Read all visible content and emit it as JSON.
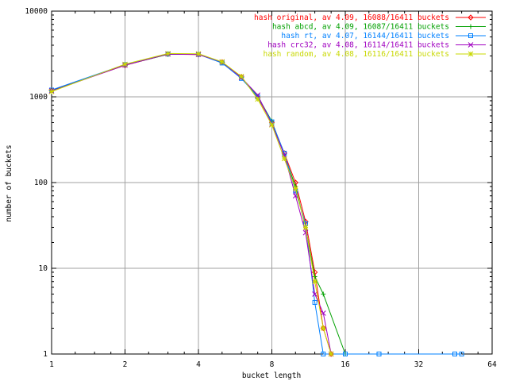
{
  "chart_data": {
    "type": "line",
    "xlabel": "bucket length",
    "ylabel": "number of buckets",
    "xscale": "log2",
    "yscale": "log10",
    "xlim": [
      1,
      64
    ],
    "ylim": [
      1,
      10000
    ],
    "xticks": [
      "1",
      "2",
      "4",
      "8",
      "16",
      "32",
      "64"
    ],
    "yticks": [
      "1",
      "10",
      "100",
      "1000",
      "10000"
    ],
    "grid": true,
    "legend_position": "top-right",
    "series": [
      {
        "name": "hash original, av 4.09, 16088/16411 buckets",
        "color": "#ff0000",
        "marker": "diamond",
        "x": [
          1,
          2,
          3,
          4,
          5,
          6,
          7,
          8,
          9,
          10,
          11,
          12,
          13,
          14
        ],
        "y": [
          1190,
          2330,
          3150,
          3110,
          2540,
          1710,
          980,
          500,
          220,
          100,
          35,
          9,
          2,
          1
        ]
      },
      {
        "name": "hash abcd, av 4.09, 16087/16411 buckets",
        "color": "#00a000",
        "marker": "plus",
        "x": [
          1,
          2,
          3,
          4,
          5,
          6,
          7,
          8,
          9,
          10,
          11,
          12,
          13,
          16
        ],
        "y": [
          1180,
          2350,
          3130,
          3140,
          2500,
          1690,
          1010,
          520,
          210,
          90,
          30,
          8,
          5,
          1
        ]
      },
      {
        "name": "hash rt, av 4.07, 16144/16411 buckets",
        "color": "#0080ff",
        "marker": "square",
        "x": [
          1,
          2,
          3,
          4,
          5,
          6,
          7,
          8,
          9,
          10,
          11,
          12,
          13,
          16,
          22,
          45,
          48
        ],
        "y": [
          1200,
          2380,
          3160,
          3130,
          2480,
          1640,
          1000,
          510,
          220,
          80,
          33,
          4,
          1,
          1,
          1,
          1,
          1
        ]
      },
      {
        "name": "hash crc32, av 4.08, 16114/16411 buckets",
        "color": "#a000c0",
        "marker": "cross",
        "x": [
          1,
          2,
          3,
          4,
          5,
          6,
          7,
          8,
          9,
          10,
          11,
          12,
          13,
          14
        ],
        "y": [
          1170,
          2340,
          3150,
          3120,
          2550,
          1670,
          1050,
          480,
          210,
          70,
          26,
          5,
          3,
          1
        ]
      },
      {
        "name": "hash random, av 4.08, 16116/16411 buckets",
        "color": "#c8d800",
        "marker": "star",
        "x": [
          1,
          2,
          3,
          4,
          5,
          6,
          7,
          8,
          9,
          10,
          11,
          12,
          13,
          14
        ],
        "y": [
          1150,
          2400,
          3200,
          3180,
          2560,
          1730,
          940,
          470,
          190,
          85,
          30,
          7,
          2,
          1
        ]
      }
    ]
  }
}
